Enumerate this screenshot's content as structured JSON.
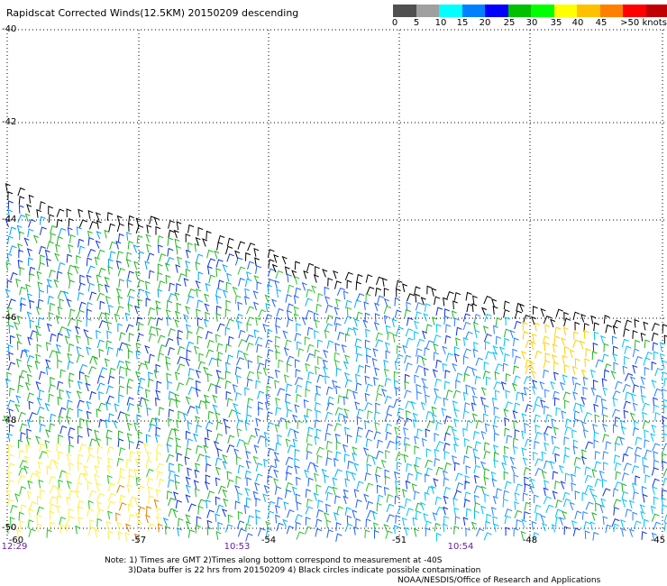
{
  "title": "Rapidscat Corrected Winds(12.5KM) 20150209 descending",
  "colorbar": {
    "colors": [
      "#505050",
      "#a0a0a0",
      "#00ffff",
      "#0080ff",
      "#0000ff",
      "#00c000",
      "#00ff00",
      "#ffff00",
      "#ffc000",
      "#ff8000",
      "#ff0000",
      "#c00000",
      "#804000",
      "#ffa0a0",
      "#ff00ff",
      "#9000ff",
      "#4000a0"
    ],
    "labels": [
      "0",
      "5",
      "10",
      "15",
      "20",
      "25",
      "30",
      "35",
      "40",
      "45",
      ">50 knots"
    ]
  },
  "axes": {
    "lat_labels": [
      "-40",
      "-42",
      "-44",
      "-46",
      "-48",
      "-50"
    ],
    "lon_labels": [
      "-57",
      "-54",
      "-51",
      "-48",
      "-45"
    ],
    "corner_label": "-60",
    "time_labels": [
      "12:29",
      "10:53",
      "10:54"
    ]
  },
  "notes": {
    "line1": "Note: 1) Times are GMT 2)Times along bottom correspond to measurement at -40S",
    "line2": "3)Data buffer is 22 hrs from 20150209 4) Black circles indicate possible contamination",
    "line3": "NOAA/NESDIS/Office of Research and Applications"
  }
}
